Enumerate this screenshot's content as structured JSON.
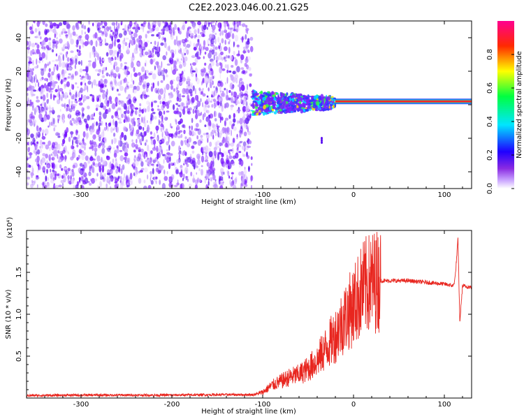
{
  "title": "C2E2.2023.046.00.21.G25",
  "colors": {
    "snr_line": "#e8261f",
    "axis": "#000000"
  },
  "chart_data": [
    {
      "type": "heatmap",
      "title": "C2E2.2023.046.00.21.G25",
      "xlabel": "Height of straight line (km)",
      "ylabel": "Frequency (Hz)",
      "xlim": [
        -360,
        130
      ],
      "ylim": [
        -50,
        50
      ],
      "x_ticks": [
        -300,
        -200,
        -100,
        0,
        100
      ],
      "y_ticks": [
        -40,
        -20,
        0,
        20,
        40
      ],
      "colorbar": {
        "label": "Normalized spectral amplitude",
        "range": [
          0.0,
          1.0
        ],
        "ticks": [
          "0.0",
          "0.2",
          "0.4",
          "0.6",
          "0.8"
        ],
        "colors": [
          "#ffffff",
          "#8a2be2",
          "#1f00ff",
          "#00ffff",
          "#00ff00",
          "#ffff00",
          "#ff0000",
          "#ff00aa"
        ]
      },
      "regions": [
        {
          "x_range": [
            -360,
            -112
          ],
          "freq_range": [
            -50,
            50
          ],
          "amplitude": 0.08,
          "description_level": "scattered weak"
        },
        {
          "x_range": [
            -112,
            -20
          ],
          "freq_range": [
            -6,
            8
          ],
          "amplitude": 0.35,
          "description_level": "noisy band"
        },
        {
          "x_range": [
            -20,
            130
          ],
          "freq_range": [
            1,
            3
          ],
          "amplitude": 0.9,
          "description_level": "strong narrow line"
        }
      ]
    },
    {
      "type": "line",
      "xlabel": "Height of straight line (km)",
      "ylabel": "SNR (10 * v/v)",
      "y_multiplier": "(x10⁴)",
      "xlim": [
        -360,
        130
      ],
      "ylim": [
        0,
        20000
      ],
      "x_ticks": [
        -300,
        -200,
        -100,
        0,
        100
      ],
      "y_tick_labels": [
        "0.5",
        "1.0",
        "1.5"
      ],
      "y_tick_values": [
        5000,
        10000,
        15000
      ],
      "series": [
        {
          "x": [
            -360,
            -300,
            -200,
            -150,
            -110,
            -100,
            -90,
            -80,
            -70,
            -60,
            -50,
            -40,
            -30,
            -20,
            -10,
            0,
            5,
            10,
            15,
            20,
            25,
            30,
            35,
            40,
            50,
            60,
            70,
            80,
            90,
            100,
            105,
            110,
            112,
            115,
            117,
            120,
            125,
            130
          ],
          "y": [
            300,
            350,
            350,
            400,
            400,
            700,
            1500,
            2000,
            2500,
            2800,
            3500,
            4500,
            6000,
            7500,
            9500,
            11000,
            12000,
            13000,
            13500,
            13800,
            14000,
            14000,
            14000,
            14000,
            14000,
            14000,
            13900,
            13800,
            13700,
            13600,
            13500,
            13400,
            14500,
            19000,
            9000,
            13400,
            13300,
            13200
          ]
        }
      ]
    }
  ]
}
